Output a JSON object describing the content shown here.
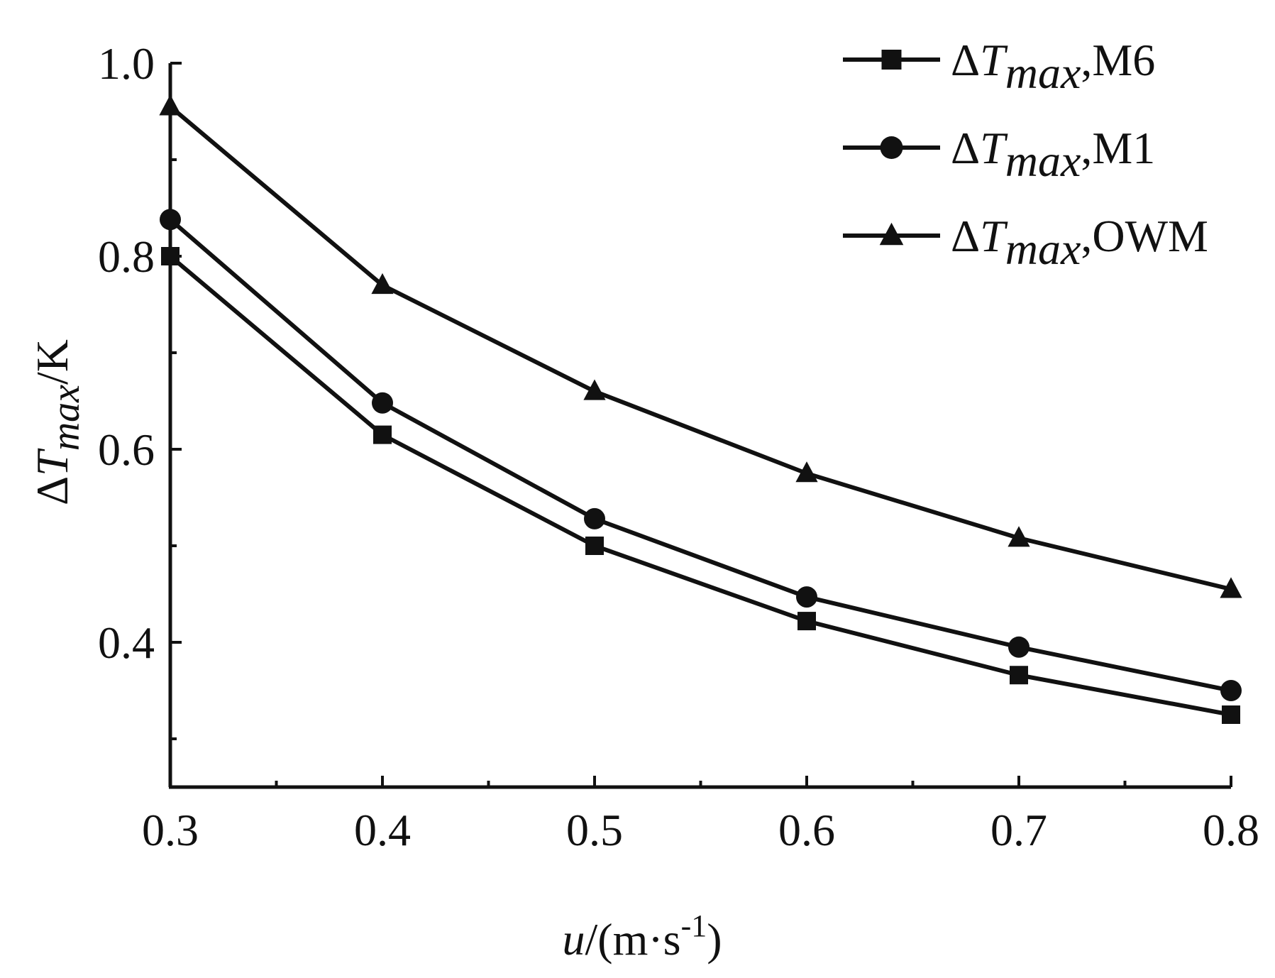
{
  "chart_data": {
    "type": "line",
    "title": "",
    "xlabel": {
      "var": "u",
      "unit_open": "/(m·s",
      "sup": "-1",
      "unit_close": ")"
    },
    "ylabel": {
      "delta": "Δ",
      "var": "T",
      "sub": "max",
      "unit": "/K"
    },
    "xlim": [
      0.3,
      0.8
    ],
    "ylim": [
      0.25,
      1.0
    ],
    "x_ticks": [
      "0.3",
      "0.4",
      "0.5",
      "0.6",
      "0.7",
      "0.8"
    ],
    "x_tick_values": [
      0.3,
      0.4,
      0.5,
      0.6,
      0.7,
      0.8
    ],
    "x_minor_ticks": [
      0.35,
      0.45,
      0.55,
      0.65,
      0.75
    ],
    "y_ticks": [
      "0.4",
      "0.6",
      "0.8",
      "1.0"
    ],
    "y_tick_values": [
      0.4,
      0.6,
      0.8,
      1.0
    ],
    "y_minor_ticks": [
      0.3,
      0.5,
      0.7,
      0.9
    ],
    "grid": false,
    "legend_position": "top-right",
    "x": [
      0.3,
      0.4,
      0.5,
      0.6,
      0.7,
      0.8
    ],
    "series": [
      {
        "legend": {
          "delta": "Δ",
          "var": "T",
          "sub": "max",
          "suffix": ",M6"
        },
        "marker": "square",
        "values": [
          0.8,
          0.615,
          0.5,
          0.422,
          0.366,
          0.325
        ]
      },
      {
        "legend": {
          "delta": "Δ",
          "var": "T",
          "sub": "max",
          "suffix": ",M1"
        },
        "marker": "circle",
        "values": [
          0.838,
          0.648,
          0.528,
          0.447,
          0.395,
          0.35
        ]
      },
      {
        "legend": {
          "delta": "Δ",
          "var": "T",
          "sub": "max",
          "suffix": ",OWM"
        },
        "marker": "triangle",
        "values": [
          0.955,
          0.77,
          0.66,
          0.575,
          0.508,
          0.455
        ]
      }
    ],
    "line_color": "#111111"
  }
}
